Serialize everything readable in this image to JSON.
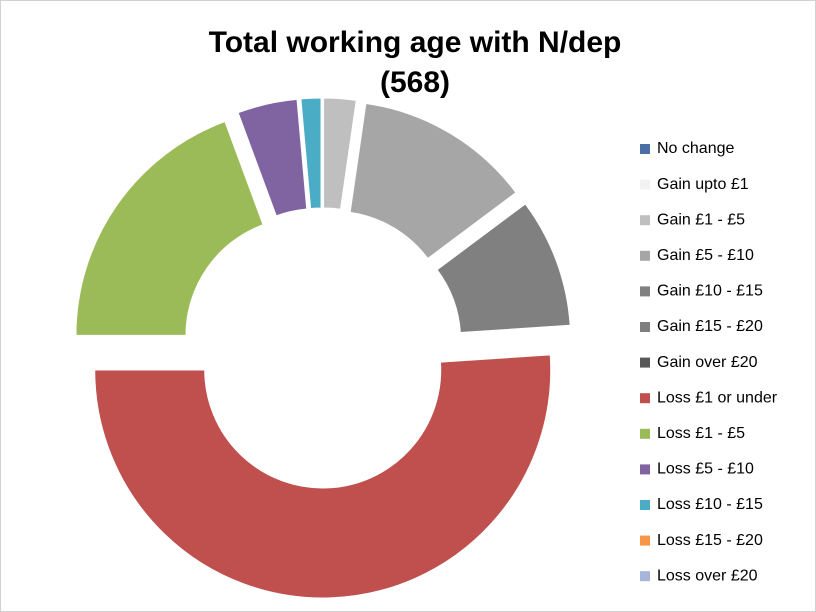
{
  "chart_data": {
    "type": "doughnut",
    "title": "Total working age with N/dep",
    "subtitle": "(568)",
    "categories": [
      "No change",
      "Gain upto £1",
      "Gain £1 - £5",
      "Gain £5 - £10",
      "Gain £10 - £15",
      "Gain £15 - £20",
      "Gain over £20",
      "Loss £1 or under",
      "Loss £1 - £5",
      "Loss £5 - £10",
      "Loss £10 - £15",
      "Loss £15 - £20",
      "Loss over £20"
    ],
    "values": [
      0,
      0,
      13,
      71,
      52,
      0,
      0,
      290,
      110,
      24,
      8,
      0,
      0
    ],
    "colors": [
      "#4a6fa5",
      "#f2f2f2",
      "#bfbfbf",
      "#a6a6a6",
      "#808080",
      "#7f7f7f",
      "#595959",
      "#c0504d",
      "#9bbb59",
      "#8064a2",
      "#4bacc6",
      "#f79646",
      "#a5b6d9"
    ],
    "legend": "right"
  }
}
